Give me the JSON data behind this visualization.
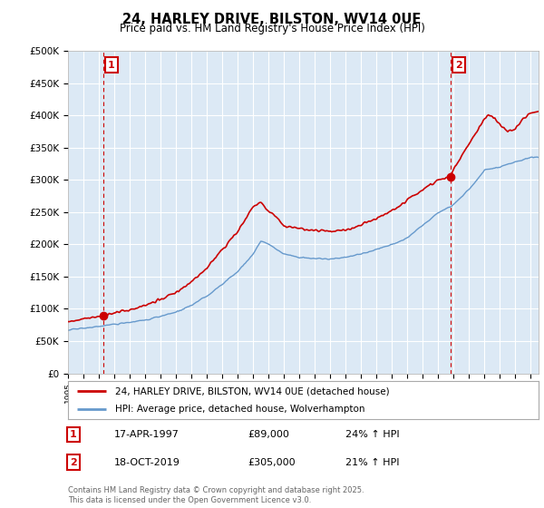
{
  "title": "24, HARLEY DRIVE, BILSTON, WV14 0UE",
  "subtitle": "Price paid vs. HM Land Registry's House Price Index (HPI)",
  "ylabel_ticks": [
    "£0",
    "£50K",
    "£100K",
    "£150K",
    "£200K",
    "£250K",
    "£300K",
    "£350K",
    "£400K",
    "£450K",
    "£500K"
  ],
  "ytick_values": [
    0,
    50000,
    100000,
    150000,
    200000,
    250000,
    300000,
    350000,
    400000,
    450000,
    500000
  ],
  "ylim": [
    0,
    500000
  ],
  "xlim_start": 1995.0,
  "xlim_end": 2025.5,
  "xtick_years": [
    1995,
    1996,
    1997,
    1998,
    1999,
    2000,
    2001,
    2002,
    2003,
    2004,
    2005,
    2006,
    2007,
    2008,
    2009,
    2010,
    2011,
    2012,
    2013,
    2014,
    2015,
    2016,
    2017,
    2018,
    2019,
    2020,
    2021,
    2022,
    2023,
    2024,
    2025
  ],
  "line1_color": "#cc0000",
  "line2_color": "#6699cc",
  "vline_color": "#cc0000",
  "annotation_box_color": "#cc0000",
  "chart_bg_color": "#dce9f5",
  "legend_label1": "24, HARLEY DRIVE, BILSTON, WV14 0UE (detached house)",
  "legend_label2": "HPI: Average price, detached house, Wolverhampton",
  "sale1_label": "1",
  "sale1_date": "17-APR-1997",
  "sale1_price": "£89,000",
  "sale1_change": "24% ↑ HPI",
  "sale1_year": 1997.29,
  "sale1_value": 89000,
  "sale2_label": "2",
  "sale2_date": "18-OCT-2019",
  "sale2_price": "£305,000",
  "sale2_change": "21% ↑ HPI",
  "sale2_year": 2019.79,
  "sale2_value": 305000,
  "footnote": "Contains HM Land Registry data © Crown copyright and database right 2025.\nThis data is licensed under the Open Government Licence v3.0.",
  "bg_color": "#ffffff",
  "grid_color": "#aabbcc"
}
